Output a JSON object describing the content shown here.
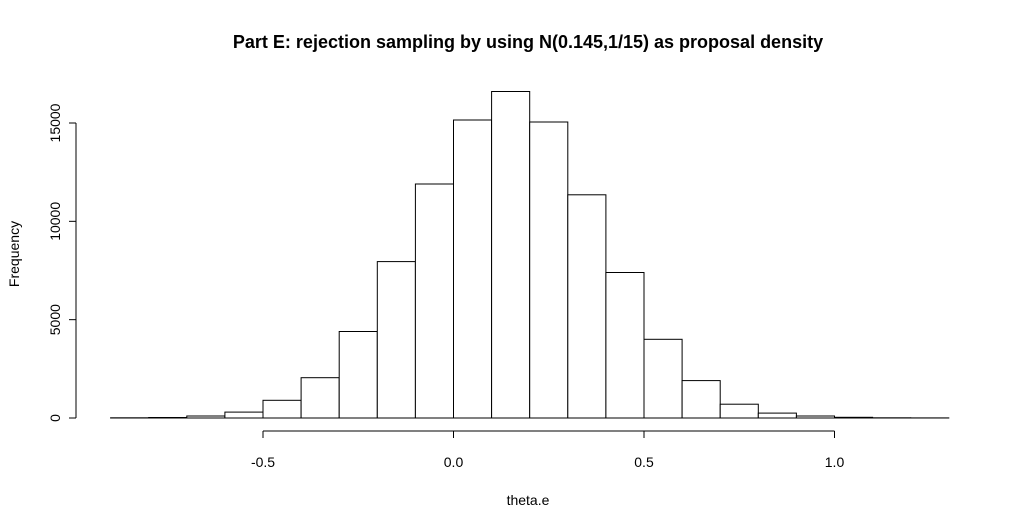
{
  "chart_data": {
    "type": "bar",
    "title": "Part E: rejection sampling by using N(0.145,1/15) as proposal density",
    "xlabel": "theta.e",
    "ylabel": "Frequency",
    "bin_width": 0.1,
    "bins": [
      {
        "x0": -0.9,
        "x1": -0.8,
        "count": 8
      },
      {
        "x0": -0.8,
        "x1": -0.7,
        "count": 25
      },
      {
        "x0": -0.7,
        "x1": -0.6,
        "count": 100
      },
      {
        "x0": -0.6,
        "x1": -0.5,
        "count": 300
      },
      {
        "x0": -0.5,
        "x1": -0.4,
        "count": 900
      },
      {
        "x0": -0.4,
        "x1": -0.3,
        "count": 2050
      },
      {
        "x0": -0.3,
        "x1": -0.2,
        "count": 4400
      },
      {
        "x0": -0.2,
        "x1": -0.1,
        "count": 7950
      },
      {
        "x0": -0.1,
        "x1": 0.0,
        "count": 11900
      },
      {
        "x0": 0.0,
        "x1": 0.1,
        "count": 15150
      },
      {
        "x0": 0.1,
        "x1": 0.2,
        "count": 16600
      },
      {
        "x0": 0.2,
        "x1": 0.3,
        "count": 15050
      },
      {
        "x0": 0.3,
        "x1": 0.4,
        "count": 11350
      },
      {
        "x0": 0.4,
        "x1": 0.5,
        "count": 7400
      },
      {
        "x0": 0.5,
        "x1": 0.6,
        "count": 4000
      },
      {
        "x0": 0.6,
        "x1": 0.7,
        "count": 1900
      },
      {
        "x0": 0.7,
        "x1": 0.8,
        "count": 700
      },
      {
        "x0": 0.8,
        "x1": 0.9,
        "count": 250
      },
      {
        "x0": 0.9,
        "x1": 1.0,
        "count": 100
      },
      {
        "x0": 1.0,
        "x1": 1.1,
        "count": 35
      },
      {
        "x0": 1.1,
        "x1": 1.2,
        "count": 8
      },
      {
        "x0": 1.2,
        "x1": 1.3,
        "count": 3
      }
    ],
    "xlim": [
      -0.9,
      1.3
    ],
    "ylim": [
      0,
      16600
    ],
    "x_ticks": [
      {
        "value": -0.5,
        "label": "-0.5"
      },
      {
        "value": 0.0,
        "label": "0.0"
      },
      {
        "value": 0.5,
        "label": "0.5"
      },
      {
        "value": 1.0,
        "label": "1.0"
      }
    ],
    "y_ticks": [
      {
        "value": 0,
        "label": "0"
      },
      {
        "value": 5000,
        "label": "5000"
      },
      {
        "value": 10000,
        "label": "10000"
      },
      {
        "value": 15000,
        "label": "15000"
      }
    ],
    "grid": false,
    "legend": "none"
  }
}
